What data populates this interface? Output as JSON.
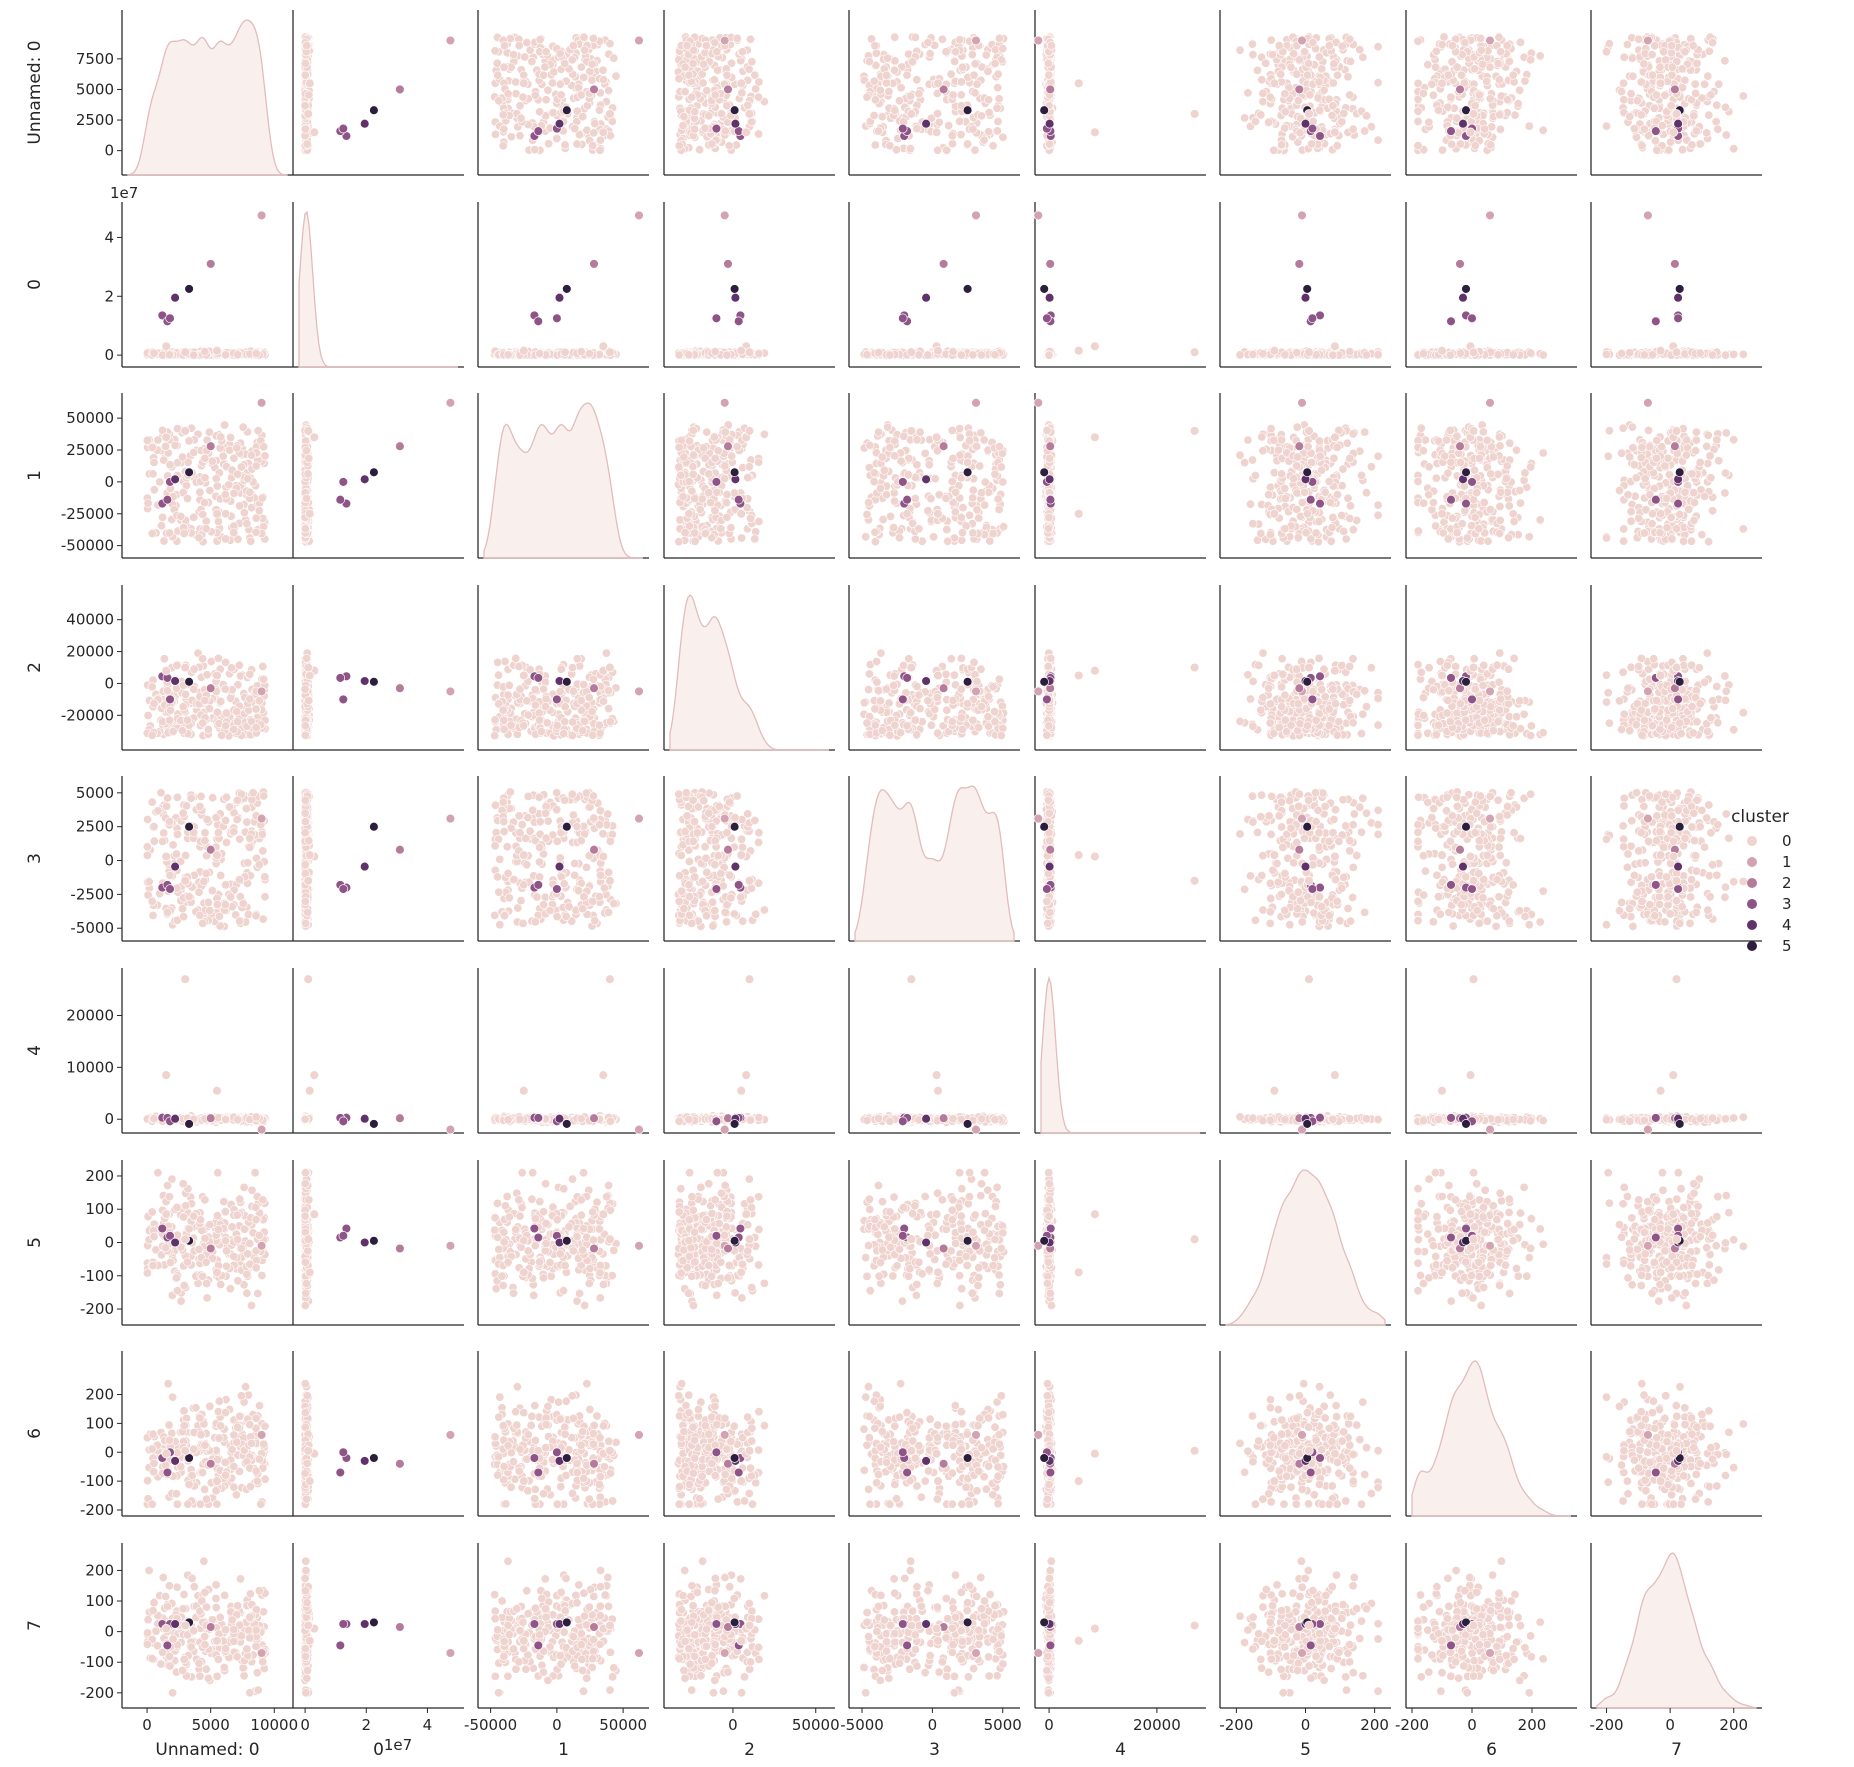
{
  "chart_data": {
    "type": "scatter",
    "kind": "pairplot",
    "diag_kind": "kde",
    "grid": false,
    "legend_placement": "right",
    "variables": [
      "Unnamed: 0",
      "0",
      "1",
      "2",
      "3",
      "4",
      "5",
      "6",
      "7"
    ],
    "axis_labels": [
      "Unnamed: 0",
      "0",
      "1",
      "2",
      "3",
      "4",
      "5",
      "6",
      "7"
    ],
    "ranges": {
      "Unnamed: 0": [
        -1500,
        11000
      ],
      "0": [
        -2000000,
        50000000
      ],
      "1": [
        -55000,
        65000
      ],
      "2": [
        -38000,
        58000
      ],
      "3": [
        -5500,
        5800
      ],
      "4": [
        -1500,
        28000
      ],
      "5": [
        -230,
        230
      ],
      "6": [
        -200,
        330
      ],
      "7": [
        -230,
        270
      ]
    },
    "ticks": {
      "Unnamed: 0": [
        0,
        2500,
        5000,
        7500
      ],
      "0": [
        0,
        20000000,
        40000000
      ],
      "1": [
        -50000,
        -25000,
        0,
        25000,
        50000
      ],
      "2": [
        -20000,
        0,
        20000,
        40000
      ],
      "3": [
        -5000,
        -2500,
        0,
        2500,
        5000
      ],
      "4": [
        0,
        10000,
        20000
      ],
      "5": [
        -200,
        -100,
        0,
        100,
        200
      ],
      "6": [
        -200,
        -100,
        0,
        100,
        200
      ],
      "7": [
        -200,
        -100,
        0,
        100,
        200
      ]
    },
    "x_ticks": {
      "Unnamed: 0": [
        0,
        5000,
        10000
      ],
      "0": [
        0,
        20000000,
        40000000
      ],
      "1": [
        -50000,
        0,
        50000
      ],
      "2": [
        0,
        50000
      ],
      "3": [
        -5000,
        0,
        5000
      ],
      "4": [
        0,
        20000
      ],
      "5": [
        -200,
        0,
        200
      ],
      "6": [
        -200,
        0,
        200
      ],
      "7": [
        -200,
        0,
        200
      ]
    },
    "offset_text": {
      "0": "1e7"
    },
    "legend": {
      "title": "cluster",
      "entries": [
        "0",
        "1",
        "2",
        "3",
        "4",
        "5"
      ],
      "colors": [
        "#efd3cf",
        "#d3a3b2",
        "#b57b9b",
        "#8e5387",
        "#5f3369",
        "#2d1e3e"
      ]
    },
    "outliers": [
      {
        "cluster": 1,
        "v": [
          9000,
          47500000,
          62000,
          -5000,
          3100,
          -2000,
          -10,
          60,
          -70
        ]
      },
      {
        "cluster": 2,
        "v": [
          5000,
          31000000,
          28000,
          -3000,
          800,
          200,
          -18,
          -40,
          15
        ]
      },
      {
        "cluster": 3,
        "v": [
          1200,
          13500000,
          -17000,
          4500,
          -2000,
          300,
          42,
          -20,
          25
        ]
      },
      {
        "cluster": 3,
        "v": [
          1600,
          11500000,
          -14000,
          3500,
          -1800,
          250,
          15,
          -70,
          -45
        ]
      },
      {
        "cluster": 3,
        "v": [
          1800,
          12500000,
          0,
          -10000,
          -2100,
          -400,
          20,
          0,
          25
        ]
      },
      {
        "cluster": 4,
        "v": [
          2200,
          19500000,
          2000,
          1500,
          -450,
          100,
          0,
          -30,
          25
        ]
      },
      {
        "cluster": 5,
        "v": [
          3300,
          22500000,
          7500,
          1000,
          2500,
          -900,
          5,
          -20,
          30
        ]
      },
      {
        "cluster": 0,
        "v": [
          1500,
          3000000,
          35000,
          8000,
          300,
          8500,
          85,
          -5,
          10
        ]
      },
      {
        "cluster": 0,
        "v": [
          5500,
          1500000,
          -25000,
          5000,
          400,
          5500,
          -90,
          -100,
          -30
        ]
      },
      {
        "cluster": 0,
        "v": [
          3000,
          1000000,
          40000,
          10000,
          -1500,
          27000,
          10,
          5,
          20
        ]
      }
    ]
  }
}
